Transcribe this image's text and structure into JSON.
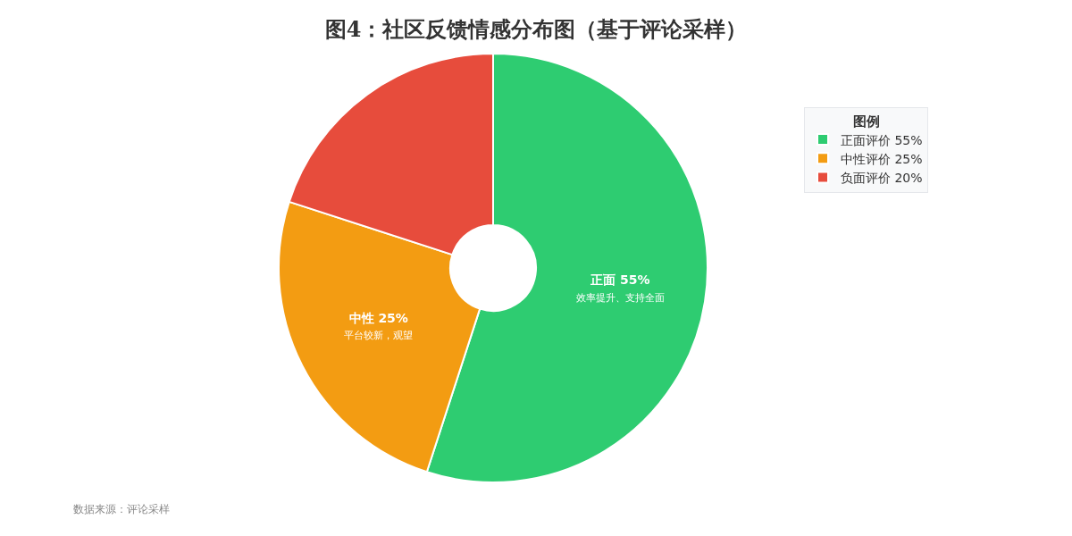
{
  "chart_data": {
    "type": "donut",
    "title": "图4：社区反馈情感分布图（基于评论采样）",
    "categories": [
      "正面评价 55%",
      "中性评价 25%",
      "负面评价 20%"
    ],
    "values": [
      55,
      25,
      20
    ],
    "colors": [
      "#2ecc71",
      "#f39c12",
      "#e74c3c"
    ],
    "value_labels": [
      "正面 55%\n效率提升、支持全面",
      "中性 25%\n平台较新，观望",
      null
    ],
    "legend": "top right",
    "legend_title": "图例",
    "annotations": [
      "数据来源：评论采样"
    ]
  }
}
